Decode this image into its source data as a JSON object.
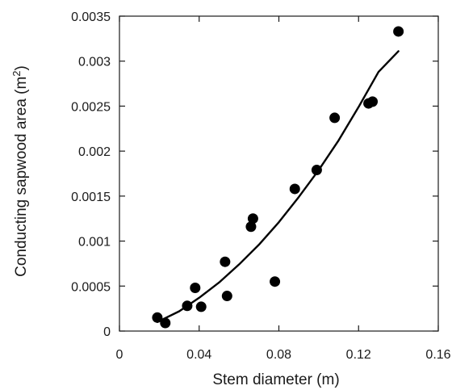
{
  "chart_data": {
    "type": "scatter",
    "title": "",
    "xlabel": "Stem diameter (m)",
    "ylabel_main": "Conducting sapwood area (m",
    "ylabel_sup": "2",
    "ylabel_close": ")",
    "xlim": [
      0,
      0.16
    ],
    "ylim": [
      0,
      0.0035
    ],
    "x_ticks": [
      "0",
      "0.04",
      "0.08",
      "0.12",
      "0.16"
    ],
    "y_ticks": [
      "0",
      "0.0005",
      "0.001",
      "0.0015",
      "0.002",
      "0.0025",
      "0.003",
      "0.0035"
    ],
    "grid": false,
    "points": [
      {
        "x": 0.019,
        "y": 0.00015
      },
      {
        "x": 0.023,
        "y": 9e-05
      },
      {
        "x": 0.034,
        "y": 0.00028
      },
      {
        "x": 0.038,
        "y": 0.00048
      },
      {
        "x": 0.041,
        "y": 0.00027
      },
      {
        "x": 0.053,
        "y": 0.00077
      },
      {
        "x": 0.054,
        "y": 0.00039
      },
      {
        "x": 0.066,
        "y": 0.00116
      },
      {
        "x": 0.067,
        "y": 0.00125
      },
      {
        "x": 0.078,
        "y": 0.00055
      },
      {
        "x": 0.088,
        "y": 0.00158
      },
      {
        "x": 0.099,
        "y": 0.00179
      },
      {
        "x": 0.108,
        "y": 0.00237
      },
      {
        "x": 0.125,
        "y": 0.00253
      },
      {
        "x": 0.127,
        "y": 0.00255
      },
      {
        "x": 0.14,
        "y": 0.00333
      }
    ],
    "fit_curve": {
      "x": [
        0.019,
        0.03,
        0.04,
        0.05,
        0.06,
        0.07,
        0.08,
        0.09,
        0.1,
        0.11,
        0.12,
        0.13,
        0.14
      ],
      "y": [
        0.0001,
        0.00022,
        0.00037,
        0.00054,
        0.00074,
        0.00096,
        0.00121,
        0.00149,
        0.00179,
        0.00212,
        0.00249,
        0.00288,
        0.00311
      ]
    }
  },
  "colors": {
    "marker": "#000000",
    "line": "#000000",
    "axis": "#1a1a1a"
  }
}
